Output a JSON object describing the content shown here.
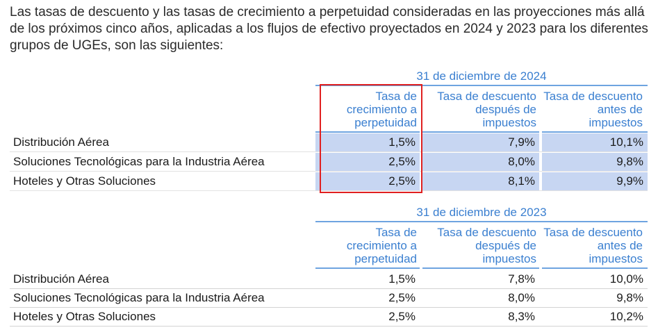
{
  "intro_text": "Las tasas de descuento y las tasas de crecimiento a perpetuidad consideradas en las proyecciones más allá de los próximos cinco años, aplicadas a los flujos de efectivo proyectados en 2024 y 2023 para los diferentes grupos de UGEs, son las siguientes:",
  "tables": [
    {
      "period": "31 de diciembre de 2024",
      "columns": [
        "Tasa de crecimiento a perpetuidad",
        "Tasa de descuento después de impuestos",
        "Tasa de descuento antes de impuestos"
      ],
      "rows": [
        {
          "label": "Distribución Aérea",
          "values": [
            "1,5%",
            "7,9%",
            "10,1%"
          ]
        },
        {
          "label": "Soluciones Tecnológicas para la Industria Aérea",
          "values": [
            "2,5%",
            "8,0%",
            "9,8%"
          ]
        },
        {
          "label": "Hoteles y Otras Soluciones",
          "values": [
            "2,5%",
            "8,1%",
            "9,9%"
          ]
        }
      ]
    },
    {
      "period": "31 de diciembre de 2023",
      "columns": [
        "Tasa de crecimiento a perpetuidad",
        "Tasa de descuento después de impuestos",
        "Tasa de descuento antes de impuestos"
      ],
      "rows": [
        {
          "label": "Distribución Aérea",
          "values": [
            "1,5%",
            "7,8%",
            "10,0%"
          ]
        },
        {
          "label": "Soluciones Tecnológicas para la Industria Aérea",
          "values": [
            "2,5%",
            "8,0%",
            "9,8%"
          ]
        },
        {
          "label": "Hoteles y Otras Soluciones",
          "values": [
            "2,5%",
            "8,3%",
            "10,2%"
          ]
        }
      ]
    }
  ],
  "colors": {
    "header_blue": "#3a7fd0",
    "highlight_fill": "#c7d6f2",
    "annotation_red": "#e02020"
  }
}
